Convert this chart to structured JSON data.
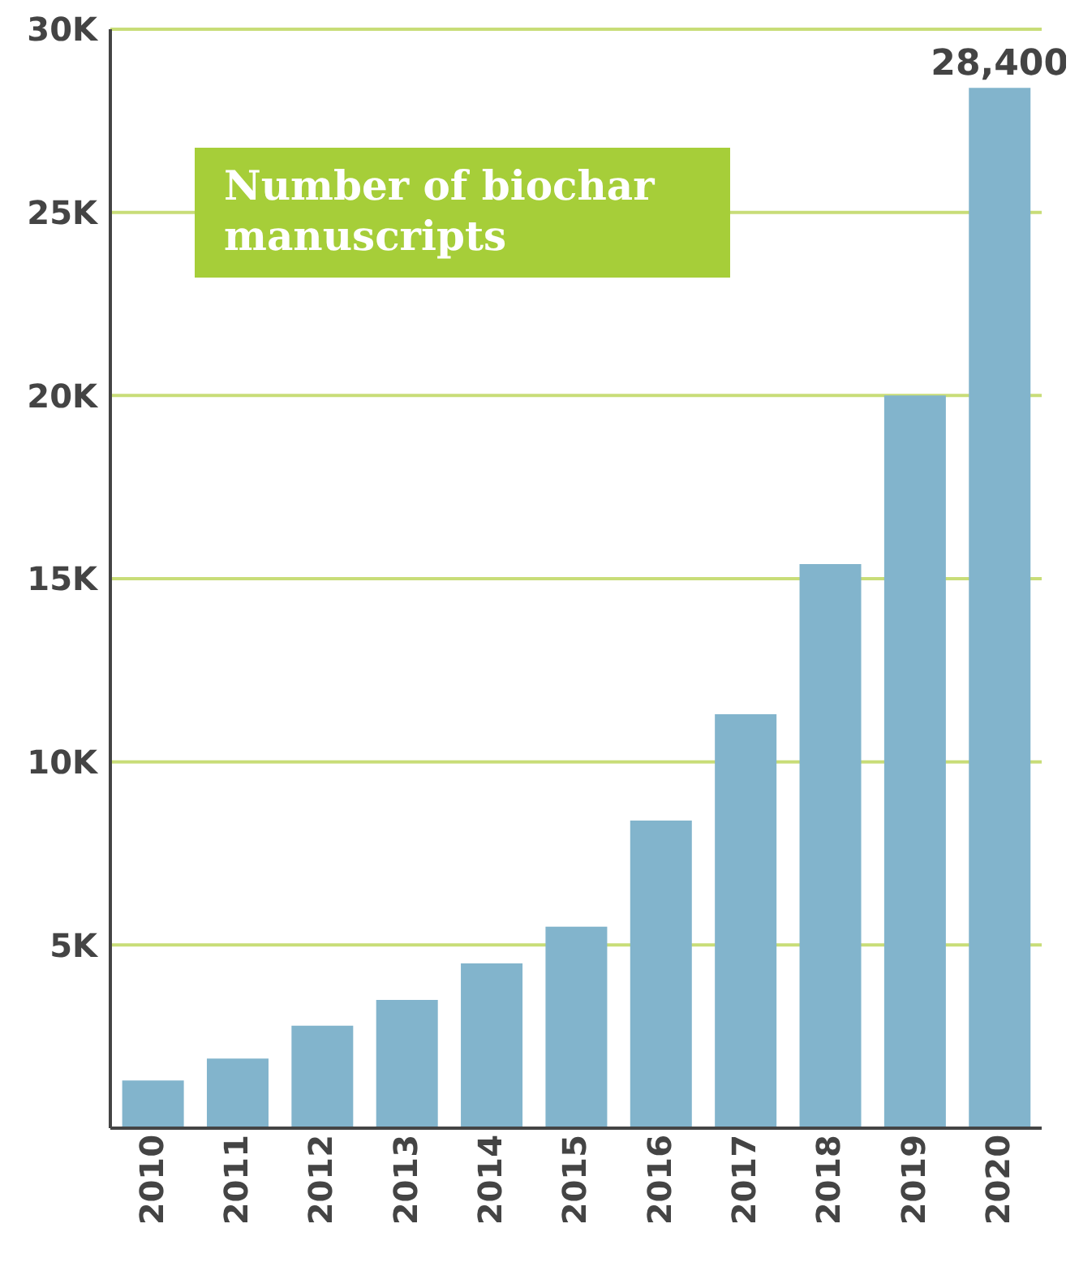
{
  "chart_data": {
    "type": "bar",
    "title": "Number of biochar manuscripts",
    "categories": [
      "2010",
      "2011",
      "2012",
      "2013",
      "2014",
      "2015",
      "2016",
      "2017",
      "2018",
      "2019",
      "2020"
    ],
    "values": [
      1300,
      1900,
      2800,
      3500,
      4500,
      5500,
      8400,
      11300,
      15400,
      20000,
      28400
    ],
    "value_labels": [
      null,
      null,
      null,
      null,
      null,
      null,
      null,
      null,
      null,
      null,
      "28,400"
    ],
    "color": "#82b4cc",
    "ylim": [
      0,
      30000
    ],
    "yticks": [
      {
        "value": 0,
        "label": null
      },
      {
        "value": 5000,
        "label": "5K"
      },
      {
        "value": 10000,
        "label": "10K"
      },
      {
        "value": 15000,
        "label": "15K"
      },
      {
        "value": 20000,
        "label": "20K"
      },
      {
        "value": 25000,
        "label": "25K"
      },
      {
        "value": 30000,
        "label": "30K"
      }
    ],
    "grid": "y"
  }
}
